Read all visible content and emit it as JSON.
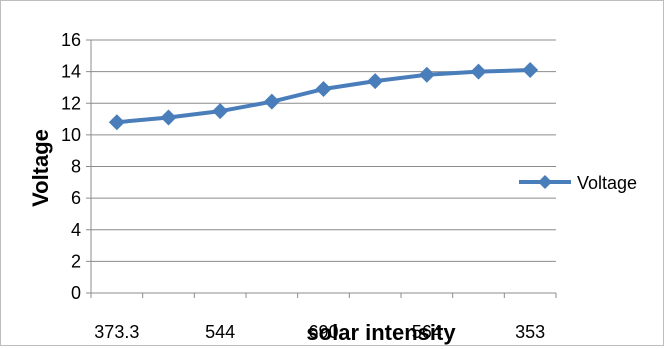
{
  "chart_data": {
    "type": "line",
    "title": "",
    "xlabel": "solar intensity",
    "ylabel": "Voltage",
    "categories": [
      "373.3",
      "",
      "544",
      "",
      "690",
      "",
      "564",
      "",
      "353"
    ],
    "ylim": [
      0,
      16
    ],
    "yticks": [
      0,
      2,
      4,
      6,
      8,
      10,
      12,
      14,
      16
    ],
    "grid": true,
    "legend": "right",
    "series": [
      {
        "name": "Voltage",
        "color": "#4a7ebb",
        "marker": "diamond",
        "values": [
          10.8,
          11.1,
          11.5,
          12.1,
          12.9,
          13.4,
          13.8,
          14.0,
          14.1
        ]
      }
    ]
  }
}
